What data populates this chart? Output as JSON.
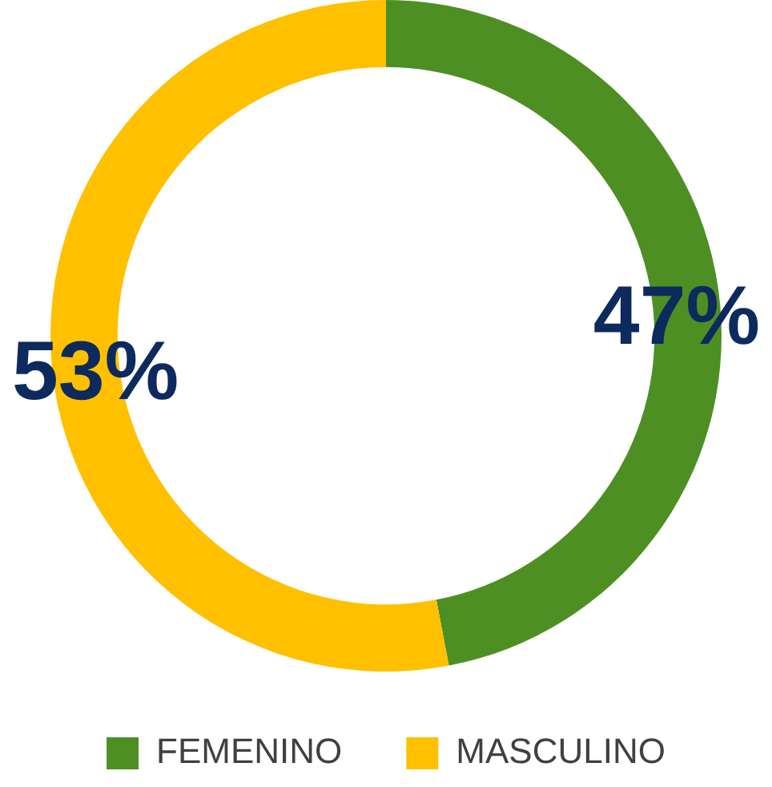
{
  "chart_data": {
    "type": "donut",
    "categories": [
      "FEMENINO",
      "MASCULINO"
    ],
    "values": [
      47,
      53
    ],
    "colors": [
      "#4e8f23",
      "#ffc000"
    ],
    "value_labels": [
      "47%",
      "53%"
    ],
    "legend": "bottom"
  }
}
